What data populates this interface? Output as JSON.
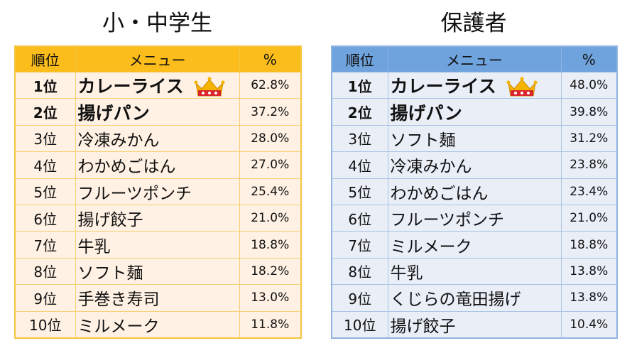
{
  "chart_data": [
    {
      "type": "table",
      "title": "小・中学生",
      "columns": [
        "順位",
        "メニュー",
        "%"
      ],
      "rows": [
        {
          "rank": "1位",
          "menu": "カレーライス",
          "pct": "62.8%",
          "value": 62.8
        },
        {
          "rank": "2位",
          "menu": "揚げパン",
          "pct": "37.2%",
          "value": 37.2
        },
        {
          "rank": "3位",
          "menu": "冷凍みかん",
          "pct": "28.0%",
          "value": 28.0
        },
        {
          "rank": "4位",
          "menu": "わかめごはん",
          "pct": "27.0%",
          "value": 27.0
        },
        {
          "rank": "5位",
          "menu": "フルーツポンチ",
          "pct": "25.4%",
          "value": 25.4
        },
        {
          "rank": "6位",
          "menu": "揚げ餃子",
          "pct": "21.0%",
          "value": 21.0
        },
        {
          "rank": "7位",
          "menu": "牛乳",
          "pct": "18.8%",
          "value": 18.8
        },
        {
          "rank": "8位",
          "menu": "ソフト麺",
          "pct": "18.2%",
          "value": 18.2
        },
        {
          "rank": "9位",
          "menu": "手巻き寿司",
          "pct": "13.0%",
          "value": 13.0
        },
        {
          "rank": "10位",
          "menu": "ミルメーク",
          "pct": "11.8%",
          "value": 11.8
        }
      ],
      "header_color": "#fbbd1c",
      "row_color": "#fff1e3"
    },
    {
      "type": "table",
      "title": "保護者",
      "columns": [
        "順位",
        "メニュー",
        "%"
      ],
      "rows": [
        {
          "rank": "1位",
          "menu": "カレーライス",
          "pct": "48.0%",
          "value": 48.0
        },
        {
          "rank": "2位",
          "menu": "揚げパン",
          "pct": "39.8%",
          "value": 39.8
        },
        {
          "rank": "3位",
          "menu": "ソフト麺",
          "pct": "31.2%",
          "value": 31.2
        },
        {
          "rank": "4位",
          "menu": "冷凍みかん",
          "pct": "23.8%",
          "value": 23.8
        },
        {
          "rank": "5位",
          "menu": "わかめごはん",
          "pct": "23.4%",
          "value": 23.4
        },
        {
          "rank": "6位",
          "menu": "フルーツポンチ",
          "pct": "21.0%",
          "value": 21.0
        },
        {
          "rank": "7位",
          "menu": "ミルメーク",
          "pct": "18.8%",
          "value": 18.8
        },
        {
          "rank": "8位",
          "menu": "牛乳",
          "pct": "13.8%",
          "value": 13.8
        },
        {
          "rank": "9位",
          "menu": "くじらの竜田揚げ",
          "pct": "13.8%",
          "value": 13.8
        },
        {
          "rank": "10位",
          "menu": "揚げ餃子",
          "pct": "10.4%",
          "value": 10.4
        }
      ],
      "header_color": "#6fa3dd",
      "row_color": "#e9eef7"
    }
  ],
  "icons": {
    "first_place": "crown-icon"
  },
  "crown_colors": {
    "gold": "#f5b400",
    "red": "#d8262c",
    "jewel": "#ffffff"
  }
}
